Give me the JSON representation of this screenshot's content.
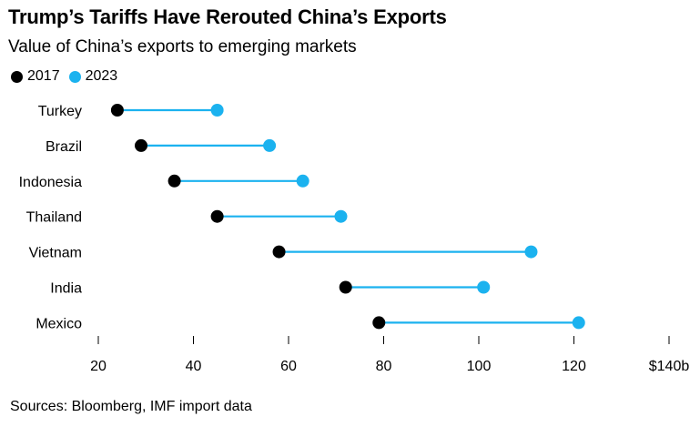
{
  "chart_data": {
    "type": "dumbbell",
    "title": "Trump’s Tariffs Have Rerouted China’s Exports",
    "subtitle": "Value of China’s exports to emerging markets",
    "source": "Sources: Bloomberg, IMF import data",
    "unit": "$ billions",
    "xlim": [
      20,
      140
    ],
    "xticks": [
      20,
      40,
      60,
      80,
      100,
      120,
      140
    ],
    "xtick_labels": [
      "20",
      "40",
      "60",
      "80",
      "100",
      "120",
      "$140b"
    ],
    "categories": [
      "Turkey",
      "Brazil",
      "Indonesia",
      "Thailand",
      "Vietnam",
      "India",
      "Mexico"
    ],
    "series": [
      {
        "name": "2017",
        "color": "#000000",
        "values": [
          24,
          29,
          36,
          45,
          58,
          72,
          79
        ]
      },
      {
        "name": "2023",
        "color": "#1bb2ef",
        "values": [
          45,
          56,
          63,
          71,
          111,
          101,
          121
        ]
      }
    ],
    "connector_color": "#1bb2ef"
  }
}
